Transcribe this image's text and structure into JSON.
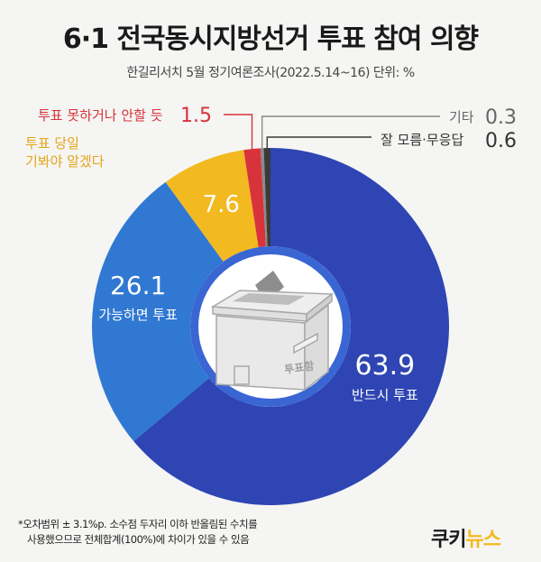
{
  "title": "6·1 전국동시지방선거 투표 참여 의향",
  "subtitle": "한길리서치 5월 정기여론조사(2022.5.14~16) 단위: %",
  "chart_data": {
    "type": "pie",
    "donut": true,
    "unit": "%",
    "slices": [
      {
        "label": "반드시 투표",
        "value": 63.9,
        "color": "#2e45b3"
      },
      {
        "label": "가능하면 투표",
        "value": 26.1,
        "color": "#3078d2"
      },
      {
        "label": "투표 당일 기봐야 알겠다",
        "label_lines": [
          "투표 당일",
          "기봐야 알겠다"
        ],
        "value": 7.6,
        "color": "#f3b920"
      },
      {
        "label": "투표 못하거나 안할 듯",
        "value": 1.5,
        "color": "#d8333b"
      },
      {
        "label": "기타",
        "value": 0.3,
        "color": "#8a8a8a"
      },
      {
        "label": "잘 모름·무응답",
        "value": 0.6,
        "color": "#3a3a3a"
      }
    ]
  },
  "ballot_box_label": "투표함",
  "footnote": [
    "*오차범위 ± 3.1%p. 소수점 두자리 이하 반올림된 수치를",
    "사용했으므로 전체합계(100%)에 차이가 있을 수 있음"
  ],
  "logo": {
    "text_main": "쿠키",
    "text_accent": "뉴스"
  }
}
